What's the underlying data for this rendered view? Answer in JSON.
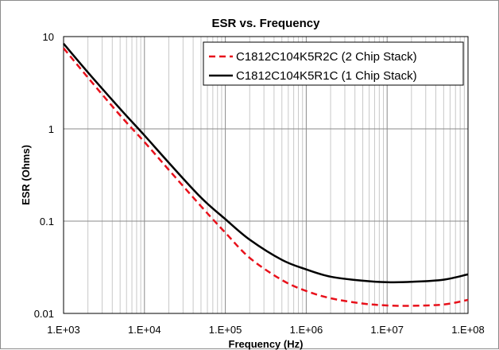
{
  "chart_data": {
    "type": "line",
    "title": "ESR vs. Frequency",
    "xlabel": "Frequency (Hz)",
    "ylabel": "ESR (Ohms)",
    "x_scale": "log",
    "y_scale": "log",
    "xlim": [
      1000,
      100000000
    ],
    "ylim": [
      0.01,
      10
    ],
    "x_ticks": [
      1000,
      10000,
      100000,
      1000000,
      10000000,
      100000000
    ],
    "x_tick_labels": [
      "1.E+03",
      "1.E+04",
      "1.E+05",
      "1.E+06",
      "1.E+07",
      "1.E+08"
    ],
    "y_ticks": [
      0.01,
      0.1,
      1,
      10
    ],
    "y_tick_labels": [
      "0.01",
      "0.1",
      "1",
      "10"
    ],
    "grid": "major and minor vertical, major horizontal",
    "legend_position": "top-right",
    "series": [
      {
        "name": "C1812C104K5R2C (2 Chip Stack)",
        "color": "#e8111b",
        "style": "dashed",
        "x": [
          1000,
          2000,
          5000,
          10000,
          20000,
          50000,
          100000,
          200000,
          500000,
          1000000,
          2000000,
          5000000,
          10000000,
          20000000,
          50000000,
          100000000
        ],
        "y": [
          7.5,
          3.6,
          1.4,
          0.72,
          0.36,
          0.145,
          0.075,
          0.04,
          0.023,
          0.0175,
          0.0146,
          0.0128,
          0.0122,
          0.0121,
          0.0125,
          0.014
        ]
      },
      {
        "name": "C1812C104K5R1C (1 Chip Stack)",
        "color": "#000000",
        "style": "solid",
        "x": [
          1000,
          2000,
          5000,
          10000,
          20000,
          50000,
          100000,
          200000,
          500000,
          1000000,
          2000000,
          5000000,
          10000000,
          20000000,
          50000000,
          100000000
        ],
        "y": [
          8.4,
          4.1,
          1.65,
          0.85,
          0.43,
          0.18,
          0.105,
          0.063,
          0.038,
          0.03,
          0.025,
          0.0226,
          0.0218,
          0.022,
          0.0232,
          0.0265
        ]
      }
    ]
  }
}
